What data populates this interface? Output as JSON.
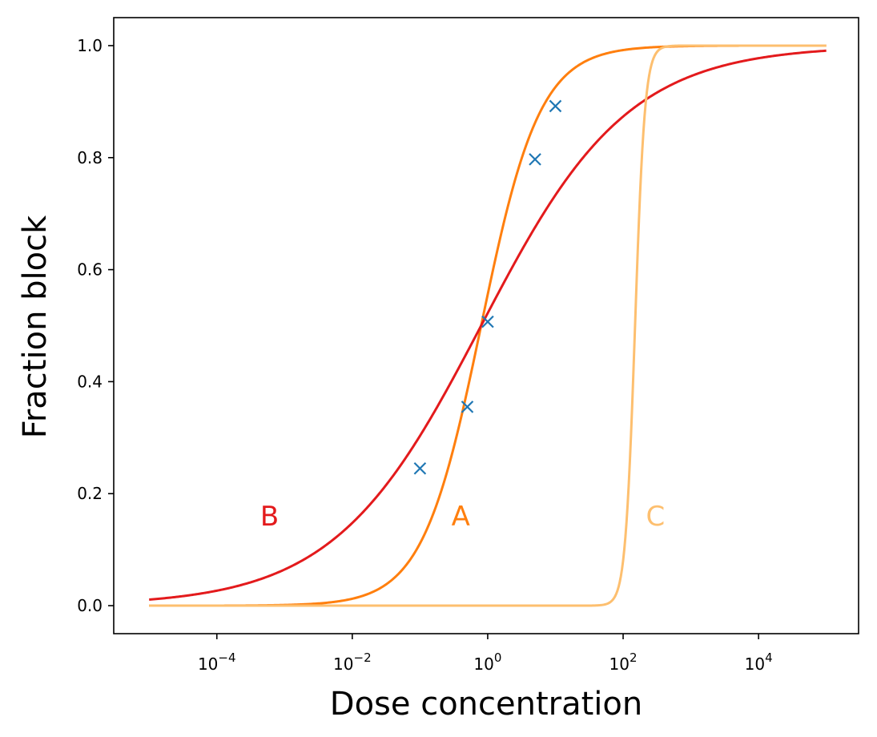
{
  "chart_data": {
    "type": "line",
    "xlabel": "Dose concentration",
    "ylabel": "Fraction block",
    "xscale": "log",
    "xlim": [
      3e-06,
      300000
    ],
    "ylim": [
      -0.05,
      1.05
    ],
    "grid": false,
    "x_ticks": [
      0.0001,
      0.01,
      1,
      100,
      10000
    ],
    "x_tick_labels": [
      {
        "base": "10",
        "exp": "−4"
      },
      {
        "base": "10",
        "exp": "−2"
      },
      {
        "base": "10",
        "exp": "0"
      },
      {
        "base": "10",
        "exp": "2"
      },
      {
        "base": "10",
        "exp": "4"
      }
    ],
    "y_ticks": [
      0.0,
      0.2,
      0.4,
      0.6,
      0.8,
      1.0
    ],
    "y_tick_labels": [
      "0.0",
      "0.2",
      "0.4",
      "0.6",
      "0.8",
      "1.0"
    ],
    "colors": {
      "A": "#ff7f0e",
      "B": "#e31a1c",
      "C": "#fdbf6f",
      "points": "#1f77b4"
    },
    "series": [
      {
        "name": "A",
        "model": "hill",
        "ic50": 0.8,
        "hill": 1.0,
        "x_range": [
          1e-05,
          100000
        ],
        "label_at": [
          0.4,
          0.16
        ]
      },
      {
        "name": "B",
        "model": "hill",
        "ic50": 0.8,
        "hill": 0.4,
        "x_range": [
          1e-05,
          100000
        ],
        "label_at": [
          0.0006,
          0.16
        ]
      },
      {
        "name": "C",
        "model": "hill",
        "ic50": 150,
        "hill": 6,
        "x_range": [
          1e-05,
          100000
        ],
        "label_at": [
          300,
          0.16
        ]
      }
    ],
    "scatter": {
      "marker": "x",
      "points": [
        {
          "x": 0.1,
          "y": 0.245
        },
        {
          "x": 0.5,
          "y": 0.355
        },
        {
          "x": 1.0,
          "y": 0.507
        },
        {
          "x": 5.0,
          "y": 0.797
        },
        {
          "x": 10.0,
          "y": 0.892
        }
      ]
    }
  }
}
